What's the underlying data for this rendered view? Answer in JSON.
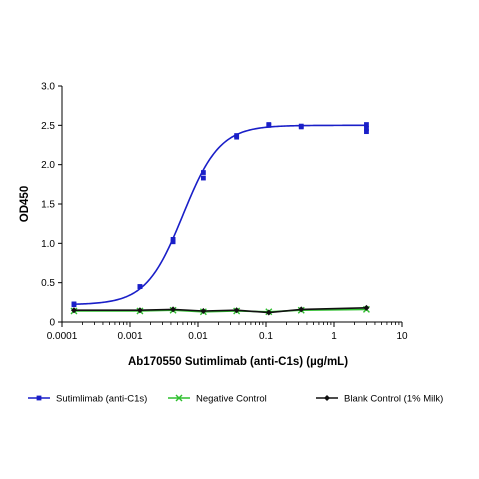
{
  "chart_data": {
    "type": "scatter",
    "xlabel": "Ab170550 Sutimlimab (anti-C1s) (µg/mL)",
    "ylabel": "OD450",
    "xscale": "log",
    "xlim": [
      0.0001,
      10
    ],
    "ylim": [
      0,
      3.0
    ],
    "x_ticks": [
      0.0001,
      0.001,
      0.01,
      0.1,
      1,
      10
    ],
    "x_tick_labels": [
      "0.0001",
      "0.001",
      "0.01",
      "0.1",
      "1",
      "10"
    ],
    "y_ticks": [
      0,
      0.5,
      1.0,
      1.5,
      2.0,
      2.5,
      3.0
    ],
    "y_tick_labels": [
      "0",
      "0.5",
      "1.0",
      "1.5",
      "2.0",
      "2.5",
      "3.0"
    ],
    "grid": false,
    "legend_position": "bottom",
    "series": [
      {
        "name": "Sutimlimab (anti-C1s)",
        "color": "#1a1fc8",
        "marker": "square",
        "x": [
          0.00015,
          0.00015,
          0.0014,
          0.0014,
          0.0043,
          0.0043,
          0.012,
          0.012,
          0.037,
          0.037,
          0.11,
          0.11,
          0.33,
          0.33,
          3.0,
          3.0,
          3.0
        ],
        "y": [
          0.22,
          0.23,
          0.45,
          0.45,
          1.02,
          1.05,
          1.83,
          1.9,
          2.35,
          2.37,
          2.5,
          2.51,
          2.48,
          2.49,
          2.42,
          2.46,
          2.51
        ],
        "fit": {
          "bottom": 0.22,
          "top": 2.5,
          "ec50": 0.006,
          "hill": 1.6
        }
      },
      {
        "name": "Negative Control",
        "color": "#2fbf2f",
        "marker": "x",
        "x": [
          0.00015,
          0.0014,
          0.0043,
          0.012,
          0.037,
          0.11,
          0.33,
          3.0
        ],
        "y": [
          0.14,
          0.14,
          0.15,
          0.13,
          0.14,
          0.13,
          0.15,
          0.16
        ]
      },
      {
        "name": "Blank Control (1% Milk)",
        "color": "#111111",
        "marker": "diamond",
        "x": [
          0.00015,
          0.0014,
          0.0043,
          0.012,
          0.037,
          0.11,
          0.33,
          3.0
        ],
        "y": [
          0.15,
          0.15,
          0.16,
          0.14,
          0.15,
          0.12,
          0.16,
          0.18
        ]
      }
    ]
  }
}
